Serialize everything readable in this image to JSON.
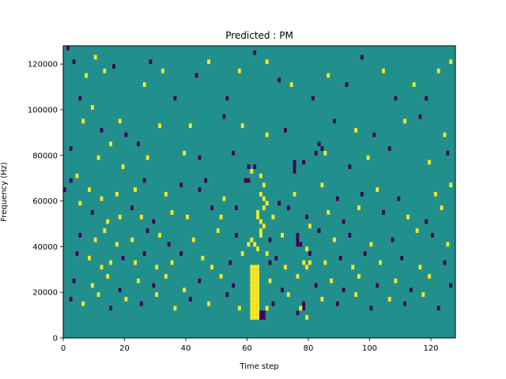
{
  "chart_data": {
    "type": "heatmap",
    "title": "Predicted : PM",
    "xlabel": "Time step",
    "ylabel": "Frequency (Hz)",
    "xlim": [
      0,
      128
    ],
    "ylim": [
      0,
      128000
    ],
    "xticks": [
      0,
      20,
      40,
      60,
      80,
      100,
      120
    ],
    "yticks": [
      0,
      20000,
      40000,
      60000,
      80000,
      100000,
      120000
    ],
    "xtick_labels": [
      "0",
      "20",
      "40",
      "60",
      "80",
      "100",
      "120"
    ],
    "ytick_labels": [
      "0",
      "20000",
      "40000",
      "60000",
      "80000",
      "100000",
      "120000"
    ],
    "grid": false,
    "legend": "none",
    "colormap": {
      "background": "#21908d",
      "positive": "#fde725",
      "negative": "#440154"
    },
    "value_range": [
      -1,
      1
    ],
    "background_value": 0,
    "grid_size": {
      "time_steps": 128,
      "freq_bins": 64,
      "bin_width_hz": 2000
    },
    "cells": [
      {
        "t": 1,
        "f": 63,
        "v": -1
      },
      {
        "t": 3,
        "f": 60,
        "v": -1
      },
      {
        "t": 5,
        "f": 52,
        "v": -1
      },
      {
        "t": 7,
        "f": 57,
        "v": 1
      },
      {
        "t": 10,
        "f": 61,
        "v": 1
      },
      {
        "t": 13,
        "f": 58,
        "v": 1
      },
      {
        "t": 16,
        "f": 59,
        "v": -1
      },
      {
        "t": 9,
        "f": 50,
        "v": 1
      },
      {
        "t": 12,
        "f": 45,
        "v": -1
      },
      {
        "t": 18,
        "f": 47,
        "v": 1
      },
      {
        "t": 20,
        "f": 44,
        "v": -1
      },
      {
        "t": 15,
        "f": 42,
        "v": 1
      },
      {
        "t": 26,
        "f": 55,
        "v": 1
      },
      {
        "t": 28,
        "f": 60,
        "v": -1
      },
      {
        "t": 32,
        "f": 58,
        "v": 1
      },
      {
        "t": 36,
        "f": 52,
        "v": -1
      },
      {
        "t": 43,
        "f": 57,
        "v": -1
      },
      {
        "t": 47,
        "f": 60,
        "v": 1
      },
      {
        "t": 53,
        "f": 52,
        "v": -1
      },
      {
        "t": 57,
        "f": 58,
        "v": 1
      },
      {
        "t": 62,
        "f": 62,
        "v": -1
      },
      {
        "t": 66,
        "f": 60,
        "v": 1
      },
      {
        "t": 70,
        "f": 56,
        "v": -1
      },
      {
        "t": 74,
        "f": 55,
        "v": 1
      },
      {
        "t": 81,
        "f": 52,
        "v": -1
      },
      {
        "t": 86,
        "f": 57,
        "v": 1
      },
      {
        "t": 92,
        "f": 55,
        "v": -1
      },
      {
        "t": 97,
        "f": 61,
        "v": -1
      },
      {
        "t": 104,
        "f": 58,
        "v": 1
      },
      {
        "t": 108,
        "f": 52,
        "v": -1
      },
      {
        "t": 114,
        "f": 55,
        "v": 1
      },
      {
        "t": 118,
        "f": 52,
        "v": -1
      },
      {
        "t": 122,
        "f": 58,
        "v": 1
      },
      {
        "t": 126,
        "f": 60,
        "v": 1
      },
      {
        "t": 6,
        "f": 47,
        "v": 1
      },
      {
        "t": 24,
        "f": 42,
        "v": -1
      },
      {
        "t": 31,
        "f": 46,
        "v": 1
      },
      {
        "t": 41,
        "f": 46,
        "v": 1
      },
      {
        "t": 52,
        "f": 48,
        "v": -1
      },
      {
        "t": 58,
        "f": 46,
        "v": 1
      },
      {
        "t": 66,
        "f": 44,
        "v": 1
      },
      {
        "t": 72,
        "f": 45,
        "v": -1
      },
      {
        "t": 88,
        "f": 47,
        "v": -1
      },
      {
        "t": 95,
        "f": 45,
        "v": 1
      },
      {
        "t": 101,
        "f": 44,
        "v": -1
      },
      {
        "t": 111,
        "f": 47,
        "v": 1
      },
      {
        "t": 116,
        "f": 48,
        "v": -1
      },
      {
        "t": 124,
        "f": 44,
        "v": 1
      },
      {
        "t": 2,
        "f": 41,
        "v": -1
      },
      {
        "t": 11,
        "f": 39,
        "v": 1
      },
      {
        "t": 19,
        "f": 37,
        "v": 1
      },
      {
        "t": 27,
        "f": 39,
        "v": 1
      },
      {
        "t": 39,
        "f": 40,
        "v": 1
      },
      {
        "t": 44,
        "f": 39,
        "v": -1
      },
      {
        "t": 55,
        "f": 40,
        "v": -1
      },
      {
        "t": 60,
        "f": 37,
        "v": -1
      },
      {
        "t": 64,
        "f": 35,
        "v": 1
      },
      {
        "t": 78,
        "f": 38,
        "v": -1
      },
      {
        "t": 82,
        "f": 40,
        "v": -1
      },
      {
        "t": 93,
        "f": 37,
        "v": -1
      },
      {
        "t": 99,
        "f": 39,
        "v": 1
      },
      {
        "t": 106,
        "f": 41,
        "v": -1
      },
      {
        "t": 119,
        "f": 38,
        "v": 1
      },
      {
        "t": 125,
        "f": 40,
        "v": -1
      },
      {
        "t": 2,
        "f": 34,
        "v": -1
      },
      {
        "t": 0,
        "f": 32,
        "v": -1
      },
      {
        "t": 4,
        "f": 35,
        "v": 1
      },
      {
        "t": 8,
        "f": 32,
        "v": 1
      },
      {
        "t": 12,
        "f": 30,
        "v": 1
      },
      {
        "t": 17,
        "f": 31,
        "v": 1
      },
      {
        "t": 23,
        "f": 32,
        "v": 1
      },
      {
        "t": 26,
        "f": 34,
        "v": -1
      },
      {
        "t": 33,
        "f": 31,
        "v": 1
      },
      {
        "t": 38,
        "f": 33,
        "v": -1
      },
      {
        "t": 44,
        "f": 32,
        "v": -1
      },
      {
        "t": 46,
        "f": 34,
        "v": -1
      },
      {
        "t": 52,
        "f": 30,
        "v": 1
      },
      {
        "t": 56,
        "f": 28,
        "v": -1
      },
      {
        "t": 70,
        "f": 29,
        "v": -1
      },
      {
        "t": 75,
        "f": 31,
        "v": 1
      },
      {
        "t": 84,
        "f": 33,
        "v": 1
      },
      {
        "t": 89,
        "f": 30,
        "v": -1
      },
      {
        "t": 97,
        "f": 31,
        "v": -1
      },
      {
        "t": 102,
        "f": 32,
        "v": 1
      },
      {
        "t": 109,
        "f": 30,
        "v": -1
      },
      {
        "t": 121,
        "f": 31,
        "v": 1
      },
      {
        "t": 126,
        "f": 33,
        "v": 1
      },
      {
        "t": 5,
        "f": 29,
        "v": 1
      },
      {
        "t": 9,
        "f": 27,
        "v": -1
      },
      {
        "t": 14,
        "f": 25,
        "v": 1
      },
      {
        "t": 18,
        "f": 26,
        "v": 1
      },
      {
        "t": 22,
        "f": 28,
        "v": -1
      },
      {
        "t": 25,
        "f": 26,
        "v": 1
      },
      {
        "t": 29,
        "f": 25,
        "v": -1
      },
      {
        "t": 35,
        "f": 27,
        "v": 1
      },
      {
        "t": 40,
        "f": 26,
        "v": 1
      },
      {
        "t": 48,
        "f": 28,
        "v": -1
      },
      {
        "t": 51,
        "f": 26,
        "v": 1
      },
      {
        "t": 68,
        "f": 26,
        "v": 1
      },
      {
        "t": 73,
        "f": 28,
        "v": -1
      },
      {
        "t": 79,
        "f": 26,
        "v": -1
      },
      {
        "t": 86,
        "f": 27,
        "v": 1
      },
      {
        "t": 91,
        "f": 25,
        "v": -1
      },
      {
        "t": 96,
        "f": 28,
        "v": 1
      },
      {
        "t": 104,
        "f": 27,
        "v": -1
      },
      {
        "t": 112,
        "f": 26,
        "v": 1
      },
      {
        "t": 118,
        "f": 25,
        "v": -1
      },
      {
        "t": 123,
        "f": 28,
        "v": 1
      },
      {
        "t": 5,
        "f": 22,
        "v": -1
      },
      {
        "t": 10,
        "f": 21,
        "v": 1
      },
      {
        "t": 13,
        "f": 23,
        "v": 1
      },
      {
        "t": 17,
        "f": 20,
        "v": 1
      },
      {
        "t": 22,
        "f": 21,
        "v": 1
      },
      {
        "t": 27,
        "f": 23,
        "v": -1
      },
      {
        "t": 31,
        "f": 22,
        "v": 1
      },
      {
        "t": 34,
        "f": 20,
        "v": -1
      },
      {
        "t": 42,
        "f": 21,
        "v": 1
      },
      {
        "t": 50,
        "f": 23,
        "v": 1
      },
      {
        "t": 56,
        "f": 22,
        "v": -1
      },
      {
        "t": 67,
        "f": 21,
        "v": -1
      },
      {
        "t": 71,
        "f": 22,
        "v": 1
      },
      {
        "t": 77,
        "f": 20,
        "v": -1
      },
      {
        "t": 83,
        "f": 23,
        "v": -1
      },
      {
        "t": 88,
        "f": 21,
        "v": 1
      },
      {
        "t": 93,
        "f": 22,
        "v": -1
      },
      {
        "t": 100,
        "f": 20,
        "v": 1
      },
      {
        "t": 107,
        "f": 21,
        "v": -1
      },
      {
        "t": 115,
        "f": 23,
        "v": 1
      },
      {
        "t": 120,
        "f": 22,
        "v": -1
      },
      {
        "t": 125,
        "f": 20,
        "v": 1
      },
      {
        "t": 4,
        "f": 18,
        "v": -1
      },
      {
        "t": 8,
        "f": 17,
        "v": 1
      },
      {
        "t": 12,
        "f": 15,
        "v": 1
      },
      {
        "t": 15,
        "f": 16,
        "v": 1
      },
      {
        "t": 19,
        "f": 17,
        "v": -1
      },
      {
        "t": 23,
        "f": 16,
        "v": 1
      },
      {
        "t": 26,
        "f": 18,
        "v": -1
      },
      {
        "t": 30,
        "f": 15,
        "v": 1
      },
      {
        "t": 35,
        "f": 16,
        "v": 1
      },
      {
        "t": 38,
        "f": 18,
        "v": -1
      },
      {
        "t": 45,
        "f": 17,
        "v": 1
      },
      {
        "t": 48,
        "f": 15,
        "v": 1
      },
      {
        "t": 54,
        "f": 16,
        "v": -1
      },
      {
        "t": 58,
        "f": 18,
        "v": 1
      },
      {
        "t": 69,
        "f": 17,
        "v": -1
      },
      {
        "t": 72,
        "f": 15,
        "v": 1
      },
      {
        "t": 80,
        "f": 18,
        "v": -1
      },
      {
        "t": 85,
        "f": 16,
        "v": 1
      },
      {
        "t": 90,
        "f": 17,
        "v": -1
      },
      {
        "t": 94,
        "f": 15,
        "v": 1
      },
      {
        "t": 98,
        "f": 18,
        "v": -1
      },
      {
        "t": 103,
        "f": 16,
        "v": 1
      },
      {
        "t": 110,
        "f": 17,
        "v": -1
      },
      {
        "t": 116,
        "f": 15,
        "v": 1
      },
      {
        "t": 124,
        "f": 16,
        "v": -1
      },
      {
        "t": 3,
        "f": 12,
        "v": -1
      },
      {
        "t": 9,
        "f": 11,
        "v": 1
      },
      {
        "t": 14,
        "f": 13,
        "v": 1
      },
      {
        "t": 18,
        "f": 10,
        "v": -1
      },
      {
        "t": 24,
        "f": 12,
        "v": 1
      },
      {
        "t": 29,
        "f": 11,
        "v": -1
      },
      {
        "t": 33,
        "f": 13,
        "v": 1
      },
      {
        "t": 39,
        "f": 10,
        "v": 1
      },
      {
        "t": 44,
        "f": 12,
        "v": -1
      },
      {
        "t": 51,
        "f": 13,
        "v": 1
      },
      {
        "t": 55,
        "f": 11,
        "v": -1
      },
      {
        "t": 67,
        "f": 12,
        "v": 1
      },
      {
        "t": 71,
        "f": 10,
        "v": -1
      },
      {
        "t": 76,
        "f": 13,
        "v": 1
      },
      {
        "t": 82,
        "f": 11,
        "v": -1
      },
      {
        "t": 87,
        "f": 12,
        "v": 1
      },
      {
        "t": 91,
        "f": 10,
        "v": -1
      },
      {
        "t": 96,
        "f": 13,
        "v": 1
      },
      {
        "t": 102,
        "f": 11,
        "v": -1
      },
      {
        "t": 108,
        "f": 12,
        "v": 1
      },
      {
        "t": 113,
        "f": 10,
        "v": -1
      },
      {
        "t": 119,
        "f": 13,
        "v": 1
      },
      {
        "t": 126,
        "f": 11,
        "v": -1
      },
      {
        "t": 2,
        "f": 8,
        "v": -1
      },
      {
        "t": 6,
        "f": 7,
        "v": 1
      },
      {
        "t": 11,
        "f": 9,
        "v": 1
      },
      {
        "t": 15,
        "f": 6,
        "v": -1
      },
      {
        "t": 20,
        "f": 8,
        "v": 1
      },
      {
        "t": 25,
        "f": 7,
        "v": -1
      },
      {
        "t": 30,
        "f": 9,
        "v": 1
      },
      {
        "t": 36,
        "f": 6,
        "v": 1
      },
      {
        "t": 41,
        "f": 8,
        "v": -1
      },
      {
        "t": 47,
        "f": 7,
        "v": 1
      },
      {
        "t": 53,
        "f": 9,
        "v": -1
      },
      {
        "t": 57,
        "f": 6,
        "v": 1
      },
      {
        "t": 68,
        "f": 7,
        "v": -1
      },
      {
        "t": 73,
        "f": 9,
        "v": 1
      },
      {
        "t": 78,
        "f": 6,
        "v": -1
      },
      {
        "t": 84,
        "f": 8,
        "v": 1
      },
      {
        "t": 89,
        "f": 7,
        "v": -1
      },
      {
        "t": 95,
        "f": 9,
        "v": 1
      },
      {
        "t": 100,
        "f": 6,
        "v": -1
      },
      {
        "t": 106,
        "f": 8,
        "v": 1
      },
      {
        "t": 111,
        "f": 7,
        "v": -1
      },
      {
        "t": 117,
        "f": 9,
        "v": 1
      },
      {
        "t": 122,
        "f": 6,
        "v": -1
      },
      {
        "t": 61,
        "f": 4,
        "v": 1
      },
      {
        "t": 61,
        "f": 5,
        "v": 1
      },
      {
        "t": 61,
        "f": 6,
        "v": 1
      },
      {
        "t": 61,
        "f": 7,
        "v": 1
      },
      {
        "t": 61,
        "f": 8,
        "v": 1
      },
      {
        "t": 61,
        "f": 9,
        "v": 1
      },
      {
        "t": 61,
        "f": 10,
        "v": 1
      },
      {
        "t": 61,
        "f": 11,
        "v": 1
      },
      {
        "t": 61,
        "f": 12,
        "v": 1
      },
      {
        "t": 61,
        "f": 13,
        "v": 1
      },
      {
        "t": 61,
        "f": 14,
        "v": 1
      },
      {
        "t": 61,
        "f": 15,
        "v": 1
      },
      {
        "t": 62,
        "f": 4,
        "v": 1
      },
      {
        "t": 62,
        "f": 5,
        "v": 1
      },
      {
        "t": 62,
        "f": 6,
        "v": 1
      },
      {
        "t": 62,
        "f": 7,
        "v": 1
      },
      {
        "t": 62,
        "f": 8,
        "v": 1
      },
      {
        "t": 62,
        "f": 9,
        "v": 1
      },
      {
        "t": 62,
        "f": 10,
        "v": 1
      },
      {
        "t": 62,
        "f": 11,
        "v": 1
      },
      {
        "t": 62,
        "f": 12,
        "v": 1
      },
      {
        "t": 62,
        "f": 13,
        "v": 1
      },
      {
        "t": 62,
        "f": 14,
        "v": 1
      },
      {
        "t": 62,
        "f": 15,
        "v": 1
      },
      {
        "t": 63,
        "f": 4,
        "v": 1
      },
      {
        "t": 63,
        "f": 5,
        "v": 1
      },
      {
        "t": 63,
        "f": 6,
        "v": 1
      },
      {
        "t": 63,
        "f": 7,
        "v": 1
      },
      {
        "t": 63,
        "f": 8,
        "v": 1
      },
      {
        "t": 63,
        "f": 9,
        "v": 1
      },
      {
        "t": 63,
        "f": 10,
        "v": 1
      },
      {
        "t": 63,
        "f": 11,
        "v": 1
      },
      {
        "t": 63,
        "f": 12,
        "v": 1
      },
      {
        "t": 63,
        "f": 13,
        "v": 1
      },
      {
        "t": 63,
        "f": 14,
        "v": 1
      },
      {
        "t": 63,
        "f": 15,
        "v": 1
      },
      {
        "t": 60,
        "f": 20,
        "v": 1
      },
      {
        "t": 61,
        "f": 21,
        "v": 1
      },
      {
        "t": 62,
        "f": 20,
        "v": 1
      },
      {
        "t": 63,
        "f": 19,
        "v": 1
      },
      {
        "t": 64,
        "f": 22,
        "v": 1
      },
      {
        "t": 64,
        "f": 23,
        "v": 1
      },
      {
        "t": 65,
        "f": 24,
        "v": 1
      },
      {
        "t": 64,
        "f": 25,
        "v": 1
      },
      {
        "t": 63,
        "f": 26,
        "v": 1
      },
      {
        "t": 63,
        "f": 27,
        "v": 1
      },
      {
        "t": 65,
        "f": 28,
        "v": 1
      },
      {
        "t": 66,
        "f": 29,
        "v": 1
      },
      {
        "t": 65,
        "f": 30,
        "v": 1
      },
      {
        "t": 64,
        "f": 31,
        "v": 1
      },
      {
        "t": 65,
        "f": 33,
        "v": 1
      },
      {
        "t": 59,
        "f": 34,
        "v": -1
      },
      {
        "t": 60,
        "f": 34,
        "v": -1
      },
      {
        "t": 61,
        "f": 36,
        "v": 1
      },
      {
        "t": 62,
        "f": 37,
        "v": -1
      },
      {
        "t": 64,
        "f": 4,
        "v": -1
      },
      {
        "t": 64,
        "f": 5,
        "v": -1
      },
      {
        "t": 65,
        "f": 4,
        "v": -1
      },
      {
        "t": 65,
        "f": 5,
        "v": -1
      },
      {
        "t": 66,
        "f": 6,
        "v": 1
      },
      {
        "t": 67,
        "f": 16,
        "v": -1
      },
      {
        "t": 66,
        "f": 18,
        "v": 1
      },
      {
        "t": 76,
        "f": 5,
        "v": -1
      },
      {
        "t": 77,
        "f": 6,
        "v": 1
      },
      {
        "t": 78,
        "f": 7,
        "v": -1
      },
      {
        "t": 79,
        "f": 4,
        "v": 1
      },
      {
        "t": 78,
        "f": 16,
        "v": 1
      },
      {
        "t": 79,
        "f": 15,
        "v": 1
      },
      {
        "t": 80,
        "f": 16,
        "v": 1
      },
      {
        "t": 79,
        "f": 19,
        "v": 1
      },
      {
        "t": 76,
        "f": 20,
        "v": -1
      },
      {
        "t": 76,
        "f": 21,
        "v": -1
      },
      {
        "t": 76,
        "f": 22,
        "v": -1
      },
      {
        "t": 80,
        "f": 24,
        "v": 1
      },
      {
        "t": 75,
        "f": 36,
        "v": -1
      },
      {
        "t": 75,
        "f": 37,
        "v": -1
      },
      {
        "t": 75,
        "f": 38,
        "v": -1
      },
      {
        "t": 84,
        "f": 41,
        "v": -1
      },
      {
        "t": 83,
        "f": 42,
        "v": -1
      },
      {
        "t": 85,
        "f": 40,
        "v": 1
      }
    ]
  }
}
